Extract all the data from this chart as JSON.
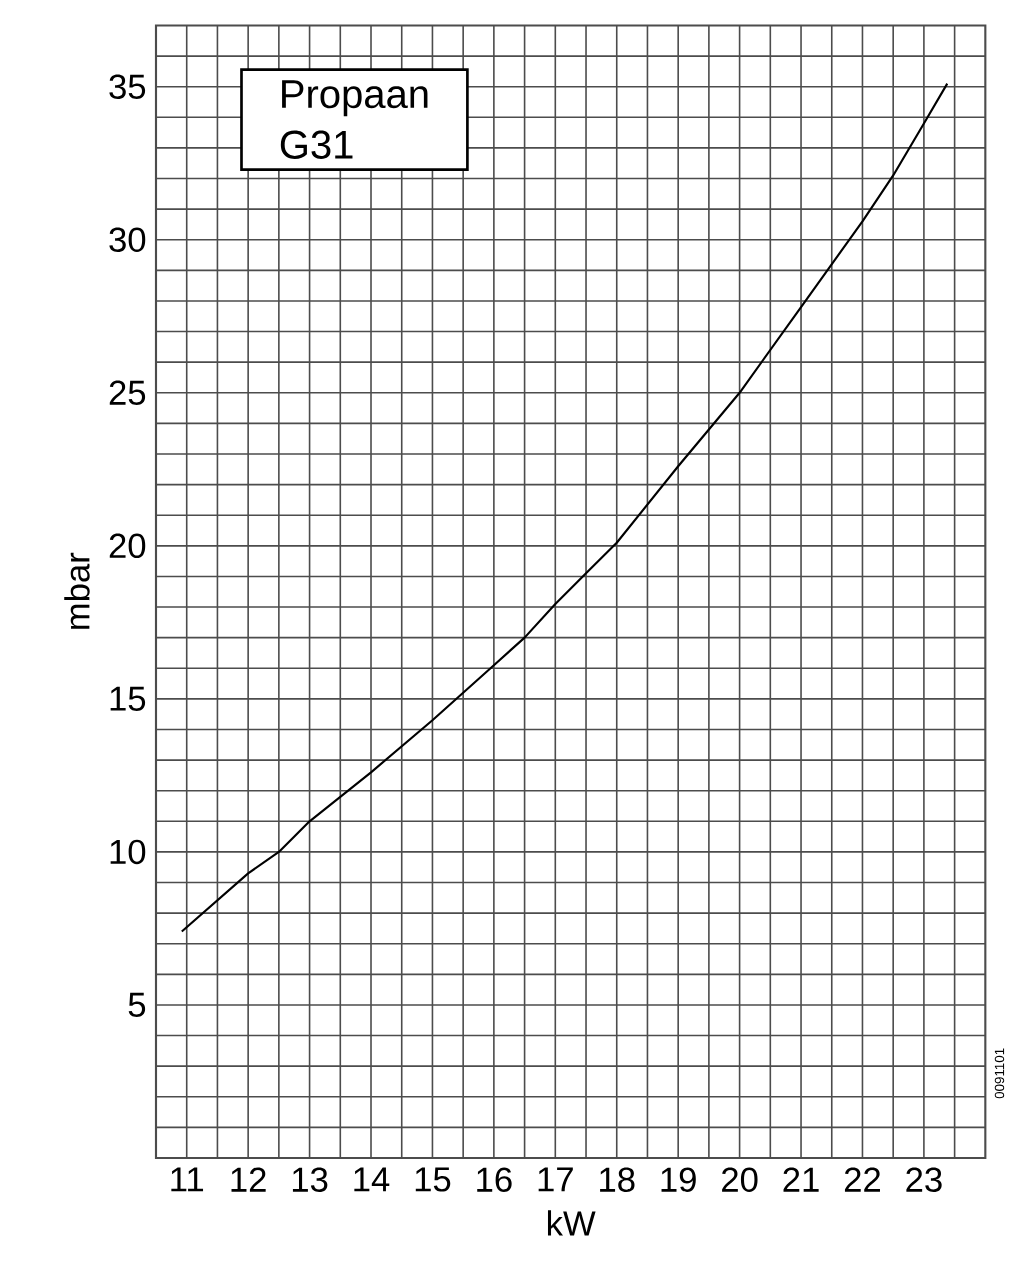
{
  "chart_data": {
    "type": "line",
    "xlabel": "kW",
    "ylabel": "mbar",
    "annotations": [
      "Propaan",
      "G31",
      "0091101"
    ],
    "x": [
      10.92,
      12,
      12.5,
      13,
      14,
      15,
      16,
      16.5,
      17,
      17.5,
      18,
      19,
      20,
      21,
      22,
      22.5,
      23,
      23.38
    ],
    "series": [
      {
        "color": "#000000",
        "values": [
          7.4,
          9.3,
          10.0,
          11.0,
          12.6,
          14.3,
          16.1,
          17.0,
          18.1,
          19.1,
          20.1,
          22.6,
          25.0,
          27.8,
          30.6,
          32.1,
          33.8,
          35.1
        ]
      }
    ],
    "xlim": [
      10.5,
      24
    ],
    "ylim": [
      0,
      37
    ],
    "xticks": [
      11,
      {
        "value": 11.5,
        "label": null
      },
      12,
      {
        "value": 12.5,
        "label": null
      },
      13,
      {
        "value": 13.5,
        "label": null
      },
      14,
      {
        "value": 14.5,
        "label": null
      },
      15,
      {
        "value": 15.5,
        "label": null
      },
      16,
      {
        "value": 16.5,
        "label": null
      },
      17,
      {
        "value": 17.5,
        "label": null
      },
      18,
      {
        "value": 18.5,
        "label": null
      },
      19,
      {
        "value": 19.5,
        "label": null
      },
      20,
      {
        "value": 20.5,
        "label": null
      },
      21,
      {
        "value": 21.5,
        "label": null
      },
      22,
      {
        "value": 22.5,
        "label": null
      },
      23,
      {
        "value": 23.5,
        "label": null
      }
    ],
    "yticks": [
      {
        "value": 1,
        "label": null
      },
      {
        "value": 2,
        "label": null
      },
      {
        "value": 3,
        "label": null
      },
      {
        "value": 4,
        "label": null
      },
      5,
      {
        "value": 6,
        "label": null
      },
      {
        "value": 7,
        "label": null
      },
      {
        "value": 8,
        "label": null
      },
      {
        "value": 9,
        "label": null
      },
      10,
      {
        "value": 11,
        "label": null
      },
      {
        "value": 12,
        "label": null
      },
      {
        "value": 13,
        "label": null
      },
      {
        "value": 14,
        "label": null
      },
      15,
      {
        "value": 16,
        "label": null
      },
      {
        "value": 17,
        "label": null
      },
      {
        "value": 18,
        "label": null
      },
      {
        "value": 19,
        "label": null
      },
      20,
      {
        "value": 21,
        "label": null
      },
      {
        "value": 22,
        "label": null
      },
      {
        "value": 23,
        "label": null
      },
      {
        "value": 24,
        "label": null
      },
      25,
      {
        "value": 26,
        "label": null
      },
      {
        "value": 27,
        "label": null
      },
      {
        "value": 28,
        "label": null
      },
      {
        "value": 29,
        "label": null
      },
      30,
      {
        "value": 31,
        "label": null
      },
      {
        "value": 32,
        "label": null
      },
      {
        "value": 33,
        "label": null
      },
      {
        "value": 34,
        "label": null
      },
      35,
      {
        "value": 36,
        "label": null
      }
    ],
    "grid": true
  }
}
